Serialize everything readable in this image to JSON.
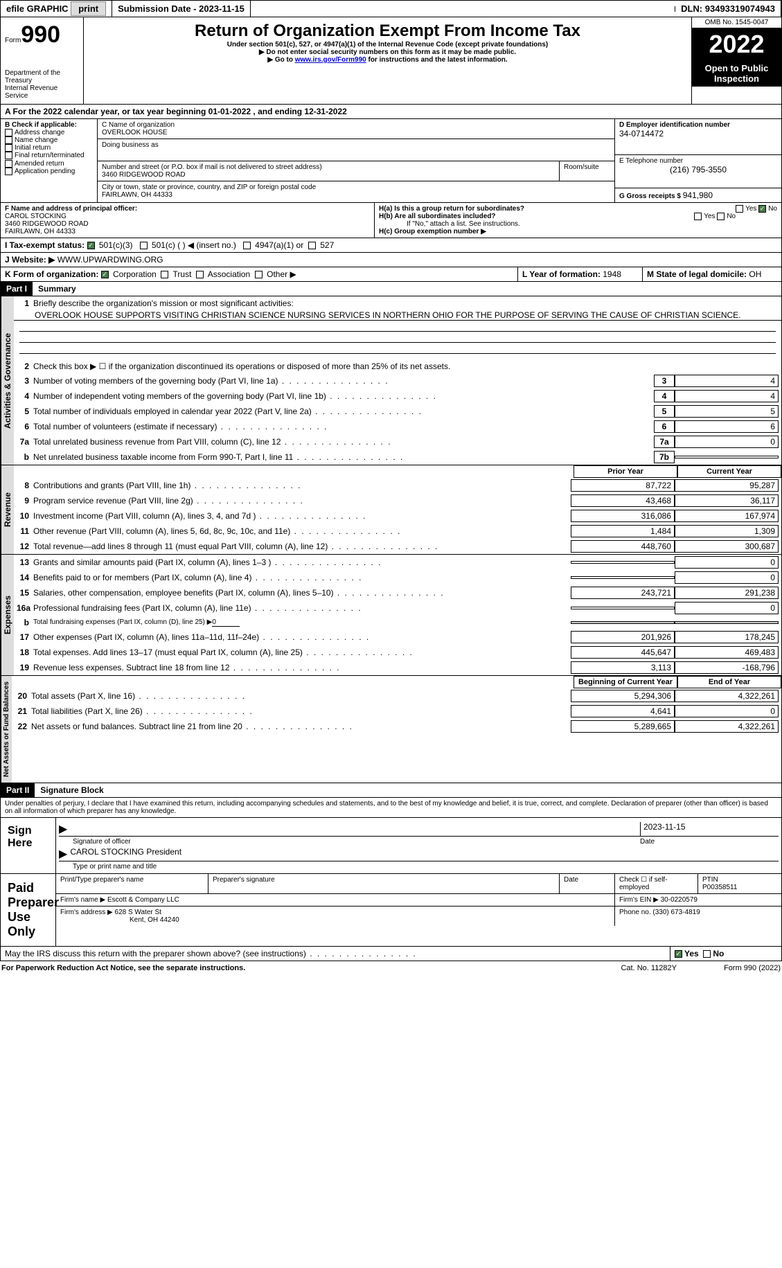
{
  "topbar": {
    "efile": "efile GRAPHIC",
    "print": "print",
    "sub_label": "Submission Date - ",
    "sub_date": "2023-11-15",
    "dln_label": "DLN: ",
    "dln": "93493319074943"
  },
  "header": {
    "form": "Form",
    "num": "990",
    "dept": "Department of the Treasury",
    "irs": "Internal Revenue Service",
    "title": "Return of Organization Exempt From Income Tax",
    "sub1": "Under section 501(c), 527, or 4947(a)(1) of the Internal Revenue Code (except private foundations)",
    "sub2": "▶ Do not enter social security numbers on this form as it may be made public.",
    "sub3_pre": "▶ Go to ",
    "sub3_link": "www.irs.gov/Form990",
    "sub3_post": " for instructions and the latest information.",
    "omb": "OMB No. 1545-0047",
    "year": "2022",
    "open": "Open to Public Inspection"
  },
  "lineA": {
    "pre": "A For the 2022 calendar year, or tax year beginning ",
    "begin": "01-01-2022",
    "mid": " , and ending ",
    "end": "12-31-2022"
  },
  "boxB": {
    "title": "B Check if applicable:",
    "items": [
      "Address change",
      "Name change",
      "Initial return",
      "Final return/terminated",
      "Amended return",
      "Application pending"
    ]
  },
  "boxC": {
    "name_label": "C Name of organization",
    "name": "OVERLOOK HOUSE",
    "dba_label": "Doing business as",
    "dba": "",
    "street_label": "Number and street (or P.O. box if mail is not delivered to street address)",
    "street": "3460 RIDGEWOOD ROAD",
    "room_label": "Room/suite",
    "city_label": "City or town, state or province, country, and ZIP or foreign postal code",
    "city": "FAIRLAWN, OH  44333"
  },
  "boxD": {
    "label": "D Employer identification number",
    "val": "34-0714472"
  },
  "boxE": {
    "label": "E Telephone number",
    "val": "(216) 795-3550"
  },
  "boxG": {
    "label": "G Gross receipts $ ",
    "val": "941,980"
  },
  "boxF": {
    "label": "F Name and address of principal officer:",
    "name": "CAROL STOCKING",
    "street": "3460 RIDGEWOOD ROAD",
    "city": "FAIRLAWN, OH  44333"
  },
  "boxH": {
    "a": "H(a)  Is this a group return for subordinates?",
    "a_no": true,
    "b": "H(b)  Are all subordinates included?",
    "b_note": "If \"No,\" attach a list. See instructions.",
    "c": "H(c)  Group exemption number ▶"
  },
  "lineI": {
    "label": "I   Tax-exempt status:",
    "c3": "501(c)(3)",
    "c": "501(c) (  ) ◀ (insert no.)",
    "a1": "4947(a)(1) or",
    "s527": "527"
  },
  "lineJ": {
    "label": "J   Website: ▶",
    "val": " WWW.UPWARDWING.ORG"
  },
  "lineK": {
    "label": "K Form of organization:",
    "corp": "Corporation",
    "trust": "Trust",
    "assoc": "Association",
    "other": "Other ▶"
  },
  "lineL": {
    "label": "L Year of formation: ",
    "val": "1948"
  },
  "lineM": {
    "label": "M State of legal domicile: ",
    "val": "OH"
  },
  "part1": {
    "num": "Part I",
    "title": "Summary"
  },
  "ag": {
    "label": "Activities & Governance",
    "l1": "Briefly describe the organization's mission or most significant activities:",
    "mission": "OVERLOOK HOUSE SUPPORTS VISITING CHRISTIAN SCIENCE NURSING SERVICES IN NORTHERN OHIO FOR THE PURPOSE OF SERVING THE CAUSE OF CHRISTIAN SCIENCE.",
    "l2": "Check this box ▶ ☐ if the organization discontinued its operations or disposed of more than 25% of its net assets.",
    "rows": [
      {
        "n": "3",
        "d": "Number of voting members of the governing body (Part VI, line 1a)",
        "b": "3",
        "v": "4"
      },
      {
        "n": "4",
        "d": "Number of independent voting members of the governing body (Part VI, line 1b)",
        "b": "4",
        "v": "4"
      },
      {
        "n": "5",
        "d": "Total number of individuals employed in calendar year 2022 (Part V, line 2a)",
        "b": "5",
        "v": "5"
      },
      {
        "n": "6",
        "d": "Total number of volunteers (estimate if necessary)",
        "b": "6",
        "v": "6"
      },
      {
        "n": "7a",
        "d": "Total unrelated business revenue from Part VIII, column (C), line 12",
        "b": "7a",
        "v": "0"
      },
      {
        "n": "b",
        "d": "Net unrelated business taxable income from Form 990-T, Part I, line 11",
        "b": "7b",
        "v": ""
      }
    ]
  },
  "cols": {
    "prior": "Prior Year",
    "current": "Current Year",
    "boy": "Beginning of Current Year",
    "eoy": "End of Year"
  },
  "rev": {
    "label": "Revenue",
    "rows": [
      {
        "n": "8",
        "d": "Contributions and grants (Part VIII, line 1h)",
        "p": "87,722",
        "c": "95,287"
      },
      {
        "n": "9",
        "d": "Program service revenue (Part VIII, line 2g)",
        "p": "43,468",
        "c": "36,117"
      },
      {
        "n": "10",
        "d": "Investment income (Part VIII, column (A), lines 3, 4, and 7d )",
        "p": "316,086",
        "c": "167,974"
      },
      {
        "n": "11",
        "d": "Other revenue (Part VIII, column (A), lines 5, 6d, 8c, 9c, 10c, and 11e)",
        "p": "1,484",
        "c": "1,309"
      },
      {
        "n": "12",
        "d": "Total revenue—add lines 8 through 11 (must equal Part VIII, column (A), line 12)",
        "p": "448,760",
        "c": "300,687"
      }
    ]
  },
  "exp": {
    "label": "Expenses",
    "rows": [
      {
        "n": "13",
        "d": "Grants and similar amounts paid (Part IX, column (A), lines 1–3 )",
        "p": "",
        "c": "0"
      },
      {
        "n": "14",
        "d": "Benefits paid to or for members (Part IX, column (A), line 4)",
        "p": "",
        "c": "0"
      },
      {
        "n": "15",
        "d": "Salaries, other compensation, employee benefits (Part IX, column (A), lines 5–10)",
        "p": "243,721",
        "c": "291,238"
      },
      {
        "n": "16a",
        "d": "Professional fundraising fees (Part IX, column (A), line 11e)",
        "p": "",
        "c": "0"
      }
    ],
    "l16b_pre": "Total fundraising expenses (Part IX, column (D), line 25) ▶",
    "l16b_val": "0",
    "rows2": [
      {
        "n": "17",
        "d": "Other expenses (Part IX, column (A), lines 11a–11d, 11f–24e)",
        "p": "201,926",
        "c": "178,245"
      },
      {
        "n": "18",
        "d": "Total expenses. Add lines 13–17 (must equal Part IX, column (A), line 25)",
        "p": "445,647",
        "c": "469,483"
      },
      {
        "n": "19",
        "d": "Revenue less expenses. Subtract line 18 from line 12",
        "p": "3,113",
        "c": "-168,796"
      }
    ]
  },
  "net": {
    "label": "Net Assets or Fund Balances",
    "rows": [
      {
        "n": "20",
        "d": "Total assets (Part X, line 16)",
        "p": "5,294,306",
        "c": "4,322,261"
      },
      {
        "n": "21",
        "d": "Total liabilities (Part X, line 26)",
        "p": "4,641",
        "c": "0"
      },
      {
        "n": "22",
        "d": "Net assets or fund balances. Subtract line 21 from line 20",
        "p": "5,289,665",
        "c": "4,322,261"
      }
    ]
  },
  "part2": {
    "num": "Part II",
    "title": "Signature Block",
    "decl": "Under penalties of perjury, I declare that I have examined this return, including accompanying schedules and statements, and to the best of my knowledge and belief, it is true, correct, and complete. Declaration of preparer (other than officer) is based on all information of which preparer has any knowledge."
  },
  "sign": {
    "here": "Sign Here",
    "sig_off": "Signature of officer",
    "date_label": "Date",
    "date": "2023-11-15",
    "name": "CAROL STOCKING",
    "title": "President",
    "type_label": "Type or print name and title"
  },
  "prep": {
    "here": "Paid Preparer Use Only",
    "pname_label": "Print/Type preparer's name",
    "psig_label": "Preparer's signature",
    "pdate_label": "Date",
    "check_label": "Check ☐ if self-employed",
    "ptin_label": "PTIN",
    "ptin": "P00358511",
    "firm_label": "Firm's name  ▶",
    "firm": "Escott & Company LLC",
    "ein_label": "Firm's EIN ▶",
    "ein": "30-0220579",
    "addr_label": "Firm's address ▶",
    "addr1": "628 S Water St",
    "addr2": "Kent, OH  44240",
    "phone_label": "Phone no. ",
    "phone": "(330) 673-4819"
  },
  "discuss": {
    "q": "May the IRS discuss this return with the preparer shown above? (see instructions)",
    "yes": true
  },
  "footer": {
    "left": "For Paperwork Reduction Act Notice, see the separate instructions.",
    "mid": "Cat. No. 11282Y",
    "right": "Form 990 (2022)"
  }
}
